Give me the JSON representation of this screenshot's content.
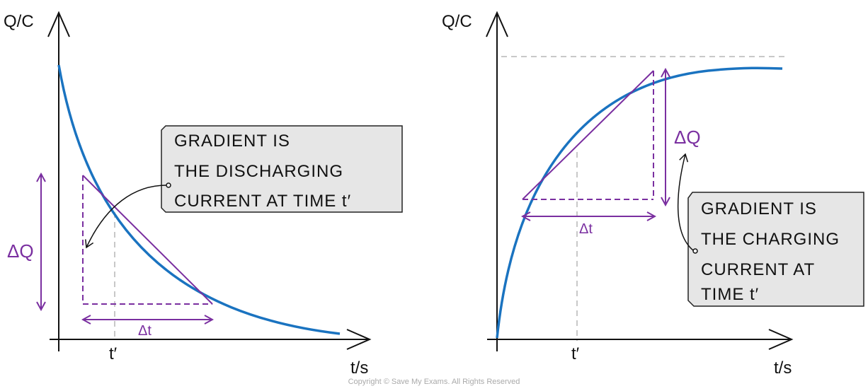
{
  "colors": {
    "curve": "#1a73c0",
    "construction": "#7a2fa0",
    "guide": "#b5b5b5",
    "callout_bg": "#e6e6e6"
  },
  "discharge": {
    "y_axis_label": "Q/C",
    "x_axis_label": "t/s",
    "delta_q_label": "ΔQ",
    "delta_t_label": "Δt",
    "t_prime_label": "t′",
    "callout_lines": [
      "GRADIENT  IS",
      "THE  DISCHARGING",
      "CURRENT  AT  TIME  t′"
    ]
  },
  "charge": {
    "y_axis_label": "Q/C",
    "x_axis_label": "t/s",
    "delta_q_label": "ΔQ",
    "delta_t_label": "Δt",
    "t_prime_label": "t′",
    "callout_lines": [
      "GRADIENT  IS",
      "THE  CHARGING",
      "CURRENT  AT",
      "TIME  t′"
    ]
  },
  "copyright": "Copyright © Save My Exams. All Rights Reserved"
}
